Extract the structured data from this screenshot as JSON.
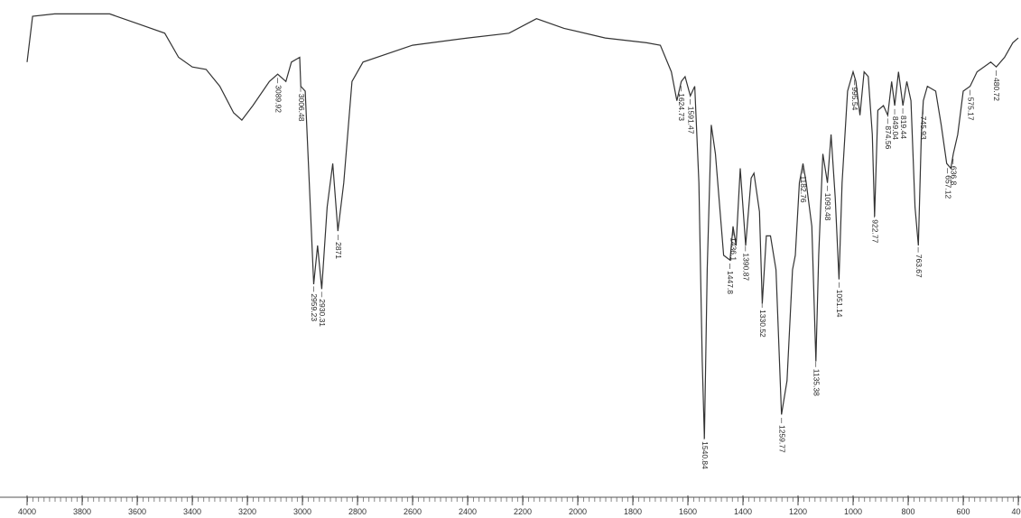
{
  "chart_data": {
    "type": "line",
    "x": [
      4000,
      3980,
      3900,
      3700,
      3600,
      3500,
      3450,
      3400,
      3350,
      3300,
      3250,
      3220,
      3180,
      3120,
      3090,
      3060,
      3040,
      3010,
      3006,
      2990,
      2975,
      2959,
      2945,
      2930,
      2910,
      2890,
      2871,
      2850,
      2820,
      2780,
      2600,
      2400,
      2250,
      2150,
      2050,
      1900,
      1750,
      1700,
      1660,
      1640,
      1624,
      1610,
      1591,
      1575,
      1560,
      1548,
      1540,
      1530,
      1515,
      1500,
      1470,
      1447,
      1436,
      1425,
      1410,
      1390,
      1370,
      1360,
      1340,
      1330,
      1315,
      1300,
      1280,
      1260,
      1240,
      1220,
      1210,
      1195,
      1182,
      1170,
      1150,
      1135,
      1125,
      1110,
      1093,
      1080,
      1065,
      1051,
      1040,
      1020,
      1000,
      990,
      975,
      960,
      945,
      930,
      922,
      910,
      890,
      874,
      860,
      849,
      835,
      819,
      805,
      790,
      775,
      763,
      752,
      745,
      730,
      700,
      680,
      660,
      645,
      636,
      620,
      600,
      575,
      550,
      500,
      480,
      450,
      420,
      400
    ],
    "values": [
      89,
      98.5,
      99,
      99,
      97,
      95,
      90,
      88,
      87.5,
      84,
      78.5,
      77,
      80,
      85,
      86.5,
      85,
      89,
      90,
      84,
      83,
      64,
      43,
      51,
      42,
      59,
      68,
      54,
      64,
      85,
      89,
      92.5,
      94,
      95,
      98,
      96,
      94,
      93,
      92.5,
      87,
      81,
      85,
      86,
      82,
      84,
      64,
      27,
      11,
      46,
      76,
      70,
      49,
      48,
      55,
      51,
      67,
      51,
      65,
      66,
      58,
      39,
      53,
      53,
      46,
      16,
      23,
      46,
      49,
      64,
      68,
      64,
      55,
      27,
      49,
      70,
      64,
      74,
      61,
      44,
      64,
      83,
      87,
      85,
      78,
      87,
      86,
      74,
      57,
      79,
      80,
      78,
      85,
      80,
      87,
      80,
      85,
      81,
      59,
      51,
      74,
      81,
      84,
      83,
      76,
      68,
      67,
      70,
      74,
      83,
      84,
      87,
      89,
      88,
      90,
      93,
      94
    ],
    "color": "#333333",
    "xlim": [
      4000,
      400
    ],
    "ylim": [
      0,
      100
    ],
    "xticks": [
      4000,
      3800,
      3600,
      3400,
      3200,
      3000,
      2800,
      2600,
      2400,
      2200,
      2000,
      1800,
      1600,
      1400,
      1200,
      1000,
      800,
      600,
      400
    ],
    "peaks": [
      3089.92,
      3006.48,
      2959.23,
      2930.31,
      2871,
      1624.73,
      1591.47,
      1540.84,
      1447.8,
      1436.1,
      1390.87,
      1330.52,
      1259.77,
      1182.76,
      1135.38,
      1093.48,
      1051.14,
      995.54,
      922.77,
      874.56,
      849.04,
      819.44,
      763.67,
      745.93,
      657.12,
      636.8,
      575.17,
      480.72
    ]
  }
}
